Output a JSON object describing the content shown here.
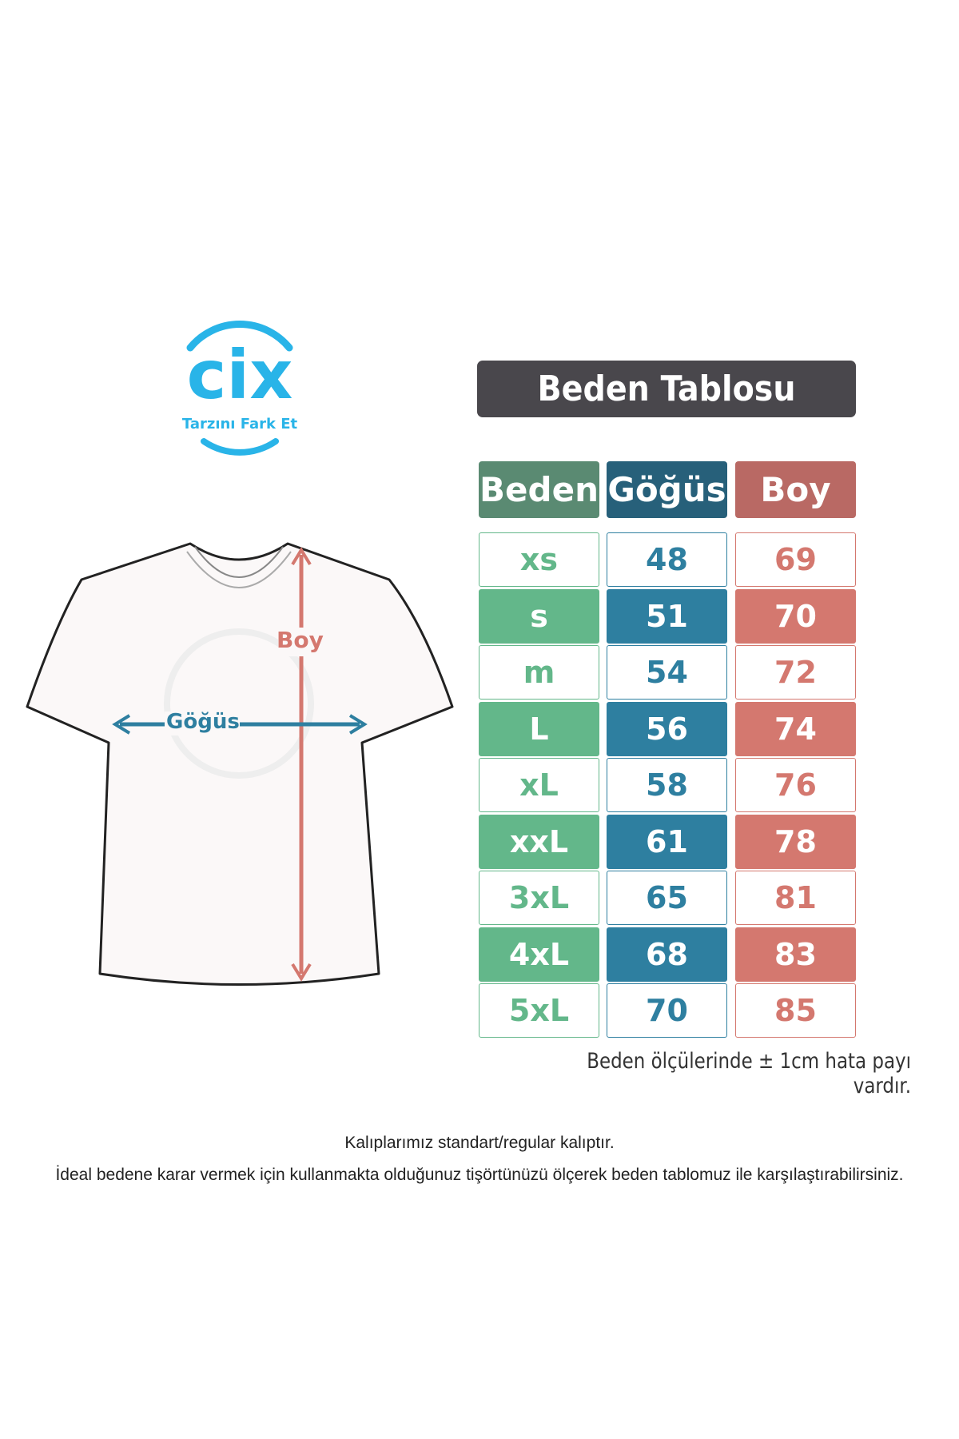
{
  "logo": {
    "brand": "CIX",
    "tagline": "Tarzını Fark Et",
    "color": "#29b4e8"
  },
  "diagram": {
    "length_label": "Boy",
    "chest_label": "Göğüs",
    "length_color": "#d4786f",
    "chest_color": "#2e7fa0"
  },
  "table": {
    "title": "Beden Tablosu",
    "headers": [
      "Beden",
      "Göğüs",
      "Boy"
    ],
    "header_colors": [
      "#5a8a72",
      "#27607a",
      "#b96964"
    ],
    "fill_colors": [
      "#63b78a",
      "#2e7fa0",
      "#d4786f"
    ],
    "rows": [
      [
        "xs",
        "48",
        "69"
      ],
      [
        "s",
        "51",
        "70"
      ],
      [
        "m",
        "54",
        "72"
      ],
      [
        "L",
        "56",
        "74"
      ],
      [
        "xL",
        "58",
        "76"
      ],
      [
        "xxL",
        "61",
        "78"
      ],
      [
        "3xL",
        "65",
        "81"
      ],
      [
        "4xL",
        "68",
        "83"
      ],
      [
        "5xL",
        "70",
        "85"
      ]
    ],
    "note": "Beden ölçülerinde ± 1cm hata payı vardır."
  },
  "footer": {
    "line1": "Kalıplarımız standart/regular kalıptır.",
    "line2": "İdeal bedene karar vermek için kullanmakta olduğunuz tişörtünüzü ölçerek beden tablomuz ile karşılaştırabilirsiniz."
  }
}
